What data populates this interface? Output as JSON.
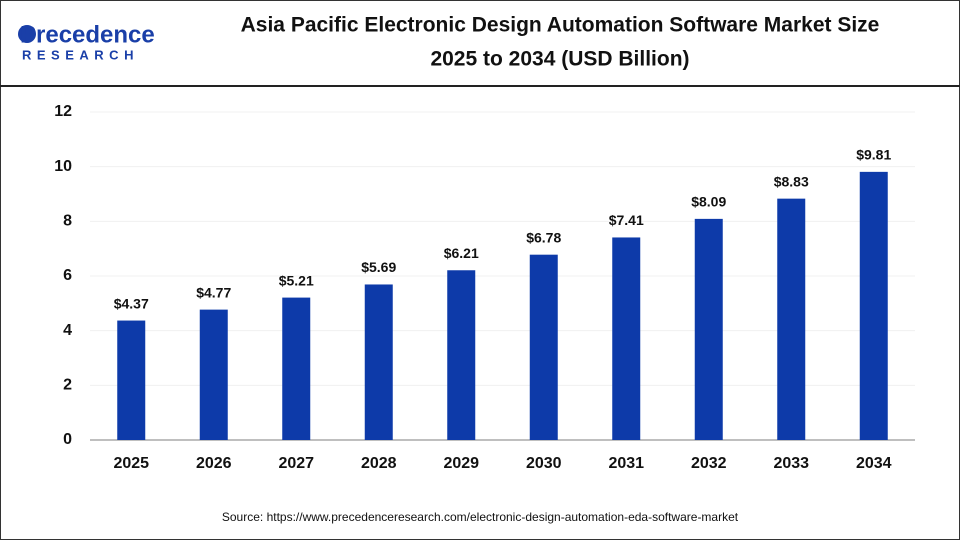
{
  "logo": {
    "name": "Precedence",
    "sub": "RESEARCH"
  },
  "chart_data": {
    "type": "bar",
    "title": [
      "Asia Pacific Electronic Design Automation Software Market Size",
      "2025 to 2034 (USD Billion)"
    ],
    "categories": [
      "2025",
      "2026",
      "2027",
      "2028",
      "2029",
      "2030",
      "2031",
      "2032",
      "2033",
      "2034"
    ],
    "values": [
      4.37,
      4.77,
      5.21,
      5.69,
      6.21,
      6.78,
      7.41,
      8.09,
      8.83,
      9.81
    ],
    "value_labels": [
      "$4.37",
      "$4.77",
      "$5.21",
      "$5.69",
      "$6.21",
      "$6.78",
      "$7.41",
      "$8.09",
      "$8.83",
      "$9.81"
    ],
    "color": "#0d3aa9",
    "ylim": [
      0,
      12
    ],
    "yticks": [
      0,
      2,
      4,
      6,
      8,
      10,
      12
    ],
    "grid": true,
    "source": "Source: https://www.precedenceresearch.com/electronic-design-automation-eda-software-market"
  }
}
